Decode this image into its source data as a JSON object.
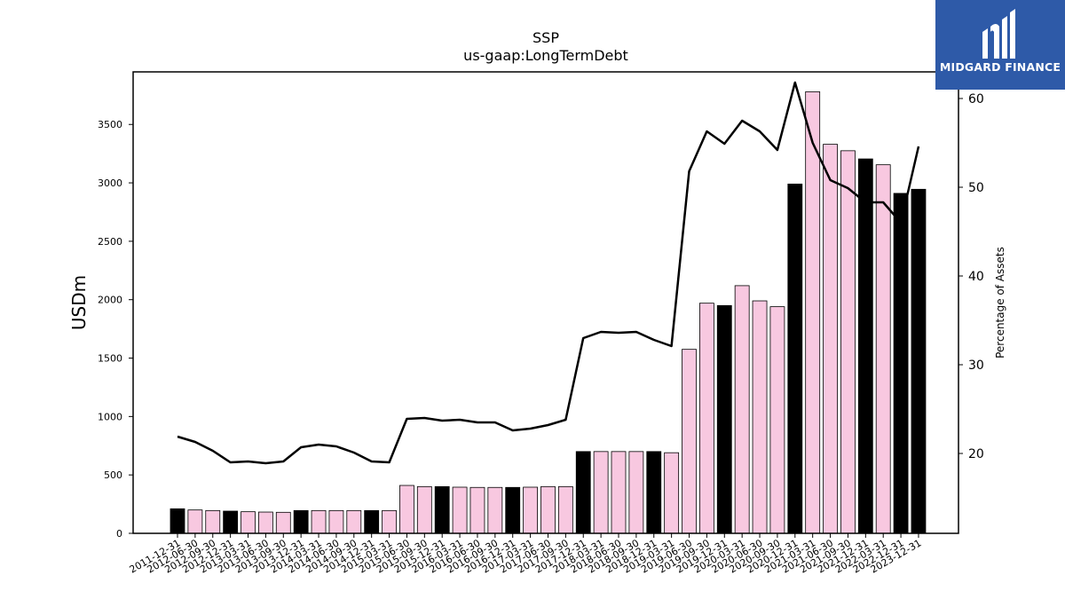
{
  "logo": {
    "text": "MIDGARD FINANCE",
    "icon": "midgard-logo-icon"
  },
  "chart_data": {
    "type": "bar",
    "title": "SSP",
    "subtitle": "us-gaap:LongTermDebt",
    "ylabel": "USDm",
    "y2label": "Percentage of Assets",
    "ylim": [
      0,
      3950
    ],
    "y2lim": [
      11,
      63
    ],
    "yticks": [
      0,
      500,
      1000,
      1500,
      2000,
      2500,
      3000,
      3500
    ],
    "y2ticks": [
      20,
      30,
      40,
      50,
      60
    ],
    "categories": [
      "2011-12-31",
      "2012-06-30",
      "2012-09-30",
      "2012-12-31",
      "2013-03-31",
      "2013-06-30",
      "2013-09-30",
      "2013-12-31",
      "2014-03-31",
      "2014-06-30",
      "2014-09-30",
      "2014-12-31",
      "2015-03-31",
      "2015-06-30",
      "2015-09-30",
      "2015-12-31",
      "2016-03-31",
      "2016-06-30",
      "2016-09-30",
      "2016-12-31",
      "2017-03-31",
      "2017-06-30",
      "2017-09-30",
      "2017-12-31",
      "2018-03-31",
      "2018-06-30",
      "2018-09-30",
      "2018-12-31",
      "2019-03-31",
      "2019-06-30",
      "2019-09-30",
      "2019-12-31",
      "2020-03-31",
      "2020-06-30",
      "2020-09-30",
      "2020-12-31",
      "2021-03-31",
      "2021-06-30",
      "2021-09-30",
      "2021-12-31",
      "2022-03-31",
      "2022-12-31",
      "2023-12-31"
    ],
    "series": [
      {
        "type": "bar",
        "values": [
          210,
          200,
          195,
          190,
          185,
          182,
          180,
          195,
          195,
          195,
          195,
          195,
          195,
          410,
          400,
          400,
          395,
          393,
          393,
          393,
          395,
          400,
          400,
          700,
          700,
          700,
          700,
          700,
          690,
          1575,
          1970,
          1950,
          2120,
          1990,
          1940,
          2990,
          3780,
          3330,
          3275,
          3205,
          3155,
          2910,
          2945
        ],
        "fills": [
          "#000000",
          "#f8c8e0",
          "#f8c8e0",
          "#000000",
          "#f8c8e0",
          "#f8c8e0",
          "#f8c8e0",
          "#000000",
          "#f8c8e0",
          "#f8c8e0",
          "#f8c8e0",
          "#000000",
          "#f8c8e0",
          "#f8c8e0",
          "#f8c8e0",
          "#000000",
          "#f8c8e0",
          "#f8c8e0",
          "#f8c8e0",
          "#000000",
          "#f8c8e0",
          "#f8c8e0",
          "#f8c8e0",
          "#000000",
          "#f8c8e0",
          "#f8c8e0",
          "#f8c8e0",
          "#000000",
          "#f8c8e0",
          "#f8c8e0",
          "#f8c8e0",
          "#000000",
          "#f8c8e0",
          "#f8c8e0",
          "#f8c8e0",
          "#000000",
          "#f8c8e0",
          "#f8c8e0",
          "#f8c8e0",
          "#000000",
          "#f8c8e0",
          "#000000",
          "#000000"
        ]
      },
      {
        "type": "line",
        "axis": "right",
        "color": "#000000",
        "values": [
          21.9,
          21.3,
          20.3,
          19.0,
          19.1,
          18.9,
          19.1,
          20.7,
          21.0,
          20.8,
          20.1,
          19.1,
          19.0,
          23.9,
          24.0,
          23.7,
          23.8,
          23.5,
          23.5,
          22.6,
          22.8,
          23.2,
          23.8,
          33.0,
          33.7,
          33.6,
          33.7,
          32.8,
          32.1,
          51.8,
          56.3,
          54.9,
          57.5,
          56.3,
          54.2,
          61.8,
          55.0,
          50.8,
          49.9,
          48.3,
          48.3,
          46.0,
          54.6
        ]
      }
    ],
    "colors": {
      "highlight": "#000000",
      "regular": "#f8c8e0",
      "line": "#000000",
      "logo_bg": "#2e5aa8"
    }
  }
}
